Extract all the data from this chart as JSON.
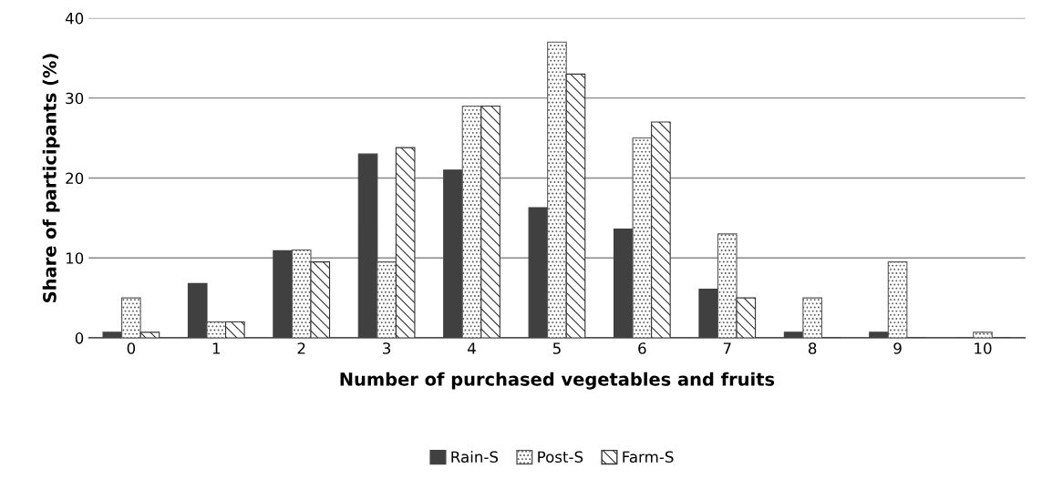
{
  "chart_data": {
    "type": "bar",
    "xlabel": "Number of purchased vegetables and fruits",
    "ylabel": "Share of participants (%)",
    "categories": [
      "0",
      "1",
      "2",
      "3",
      "4",
      "5",
      "6",
      "7",
      "8",
      "9",
      "10"
    ],
    "series": [
      {
        "name": "Rain-S",
        "color": "#404040",
        "values": [
          0.7,
          6.8,
          10.9,
          23,
          21,
          16.3,
          13.6,
          6.1,
          0.7,
          0.7,
          0
        ]
      },
      {
        "name": "Post-S",
        "color": "#595959",
        "values": [
          5,
          2,
          11,
          9.5,
          29,
          37,
          25,
          13,
          5,
          9.5,
          0.7
        ]
      },
      {
        "name": "Farm-S",
        "color": "#333333",
        "values": [
          0.7,
          2,
          9.5,
          23.8,
          29,
          33,
          27,
          5,
          0,
          0,
          0
        ]
      }
    ],
    "ylim": [
      0,
      40
    ],
    "yticks": [
      0,
      10,
      20,
      30,
      40
    ],
    "grid": "y",
    "legend": "bottom"
  }
}
